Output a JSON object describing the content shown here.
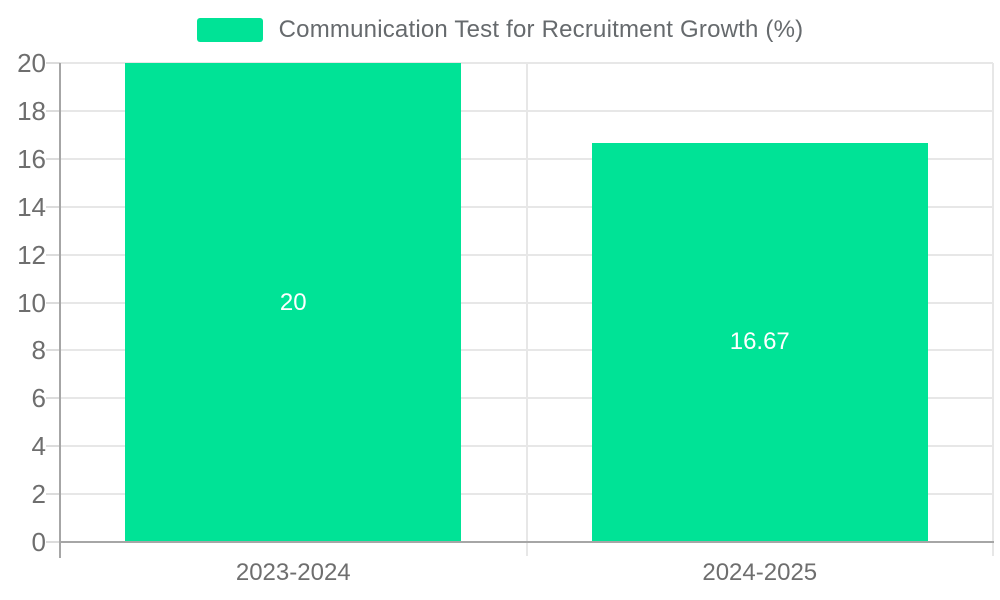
{
  "chart_data": {
    "type": "bar",
    "title": "Communication Test for Recruitment Growth (%)",
    "categories": [
      "2023-2024",
      "2024-2025"
    ],
    "values": [
      20,
      16.67
    ],
    "data_labels": [
      "20",
      "16.67"
    ],
    "ylim": [
      0,
      20
    ],
    "ytick_step": 2,
    "yticks": [
      0,
      2,
      4,
      6,
      8,
      10,
      12,
      14,
      16,
      18,
      20
    ],
    "grid": true,
    "legend_position": "top-center",
    "colors": {
      "bar": "#00e396",
      "bar_label_text": "#ffffff",
      "axis_text": "#6e6e6e",
      "legend_text": "#666a6d",
      "grid_line": "#e7e7e7",
      "tick_line": "#dcdcdc",
      "axis_line": "#a6a6a6"
    }
  },
  "legend": {
    "label": "Communication Test for Recruitment Growth (%)"
  }
}
